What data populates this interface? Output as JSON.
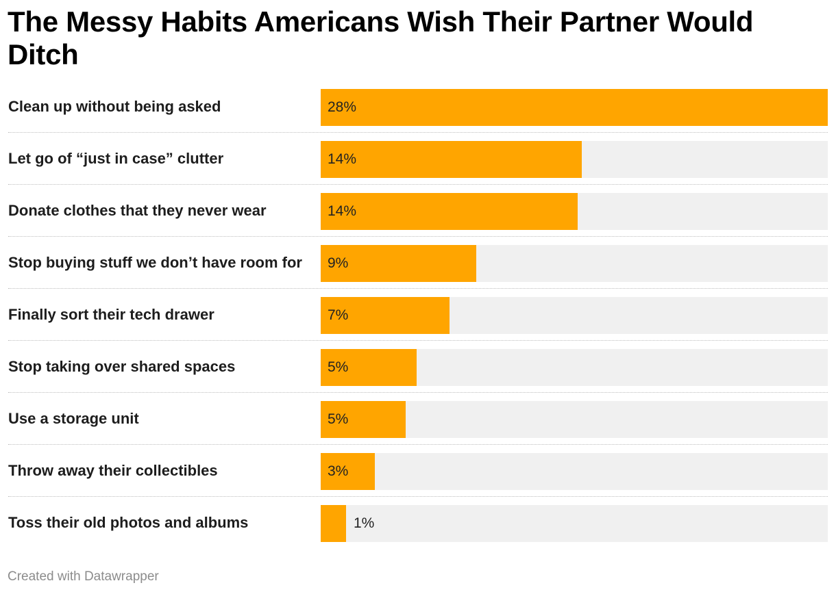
{
  "title": "The Messy Habits Americans Wish Their Partner Would Ditch",
  "footer": "Created with Datawrapper",
  "colors": {
    "bar": "#ffa500",
    "track": "#f0f0f0"
  },
  "chart_data": {
    "type": "bar",
    "orientation": "horizontal",
    "title": "The Messy Habits Americans Wish Their Partner Would Ditch",
    "xlim": [
      0,
      28
    ],
    "categories": [
      "Clean up without being asked",
      "Let go of “just in case” clutter",
      "Donate clothes that they never wear",
      "Stop buying stuff we don’t have room for",
      "Finally sort their tech drawer",
      "Stop taking over shared spaces",
      "Use a storage unit",
      "Throw away their collectibles",
      "Toss their old photos and albums"
    ],
    "values": [
      28,
      14.4,
      14.2,
      8.6,
      7.1,
      5.3,
      4.7,
      3.0,
      1.4
    ],
    "value_labels": [
      "28%",
      "14%",
      "14%",
      "9%",
      "7%",
      "5%",
      "5%",
      "3%",
      "1%"
    ]
  }
}
